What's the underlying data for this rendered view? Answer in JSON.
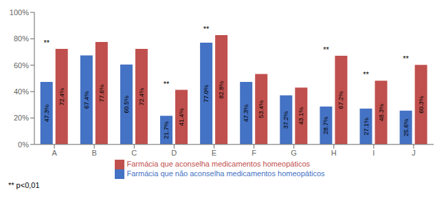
{
  "chart_data": {
    "type": "bar",
    "categories": [
      "A",
      "B",
      "C",
      "D",
      "E",
      "F",
      "G",
      "H",
      "I",
      "J"
    ],
    "series": [
      {
        "name": "Farmácia que não aconselha medicamentos homeopáticos",
        "color": "#4472C4",
        "values": [
          47.3,
          67.4,
          60.5,
          21.7,
          77.0,
          47.3,
          37.2,
          28.7,
          27.1,
          25.6
        ],
        "value_labels": [
          "47.3%",
          "67.4%",
          "60.5%",
          "21.7%",
          "77.0%",
          "47.3%",
          "37.2%",
          "28.7%",
          "27.1%",
          "25.6%"
        ]
      },
      {
        "name": "Farmácia que aconselha medicamentos homeopáticos",
        "color": "#C0504D",
        "values": [
          72.4,
          77.6,
          72.4,
          41.4,
          82.8,
          53.4,
          43.1,
          67.2,
          48.3,
          60.3
        ],
        "value_labels": [
          "72.4%",
          "77.6%",
          "72.4%",
          "41.4%",
          "82.8%",
          "53.4%",
          "43.1%",
          "67.2%",
          "48.3%",
          "60.3%"
        ]
      }
    ],
    "ylim": [
      0,
      100
    ],
    "yticks": [
      {
        "value": 0,
        "label": "0%"
      },
      {
        "value": 20,
        "label": "20%"
      },
      {
        "value": 40,
        "label": "40%"
      },
      {
        "value": 60,
        "label": "60%"
      },
      {
        "value": 80,
        "label": "80%"
      },
      {
        "value": 100,
        "label": "100%"
      }
    ],
    "data_labels": true,
    "grid": false,
    "legend": "bottom",
    "annotations": [
      {
        "category": "A",
        "text": "**"
      },
      {
        "category": "D",
        "text": "**"
      },
      {
        "category": "E",
        "text": "**"
      },
      {
        "category": "H",
        "text": "**"
      },
      {
        "category": "I",
        "text": "**"
      },
      {
        "category": "J",
        "text": "**"
      },
      {
        "text": "** p<0,01"
      }
    ]
  }
}
